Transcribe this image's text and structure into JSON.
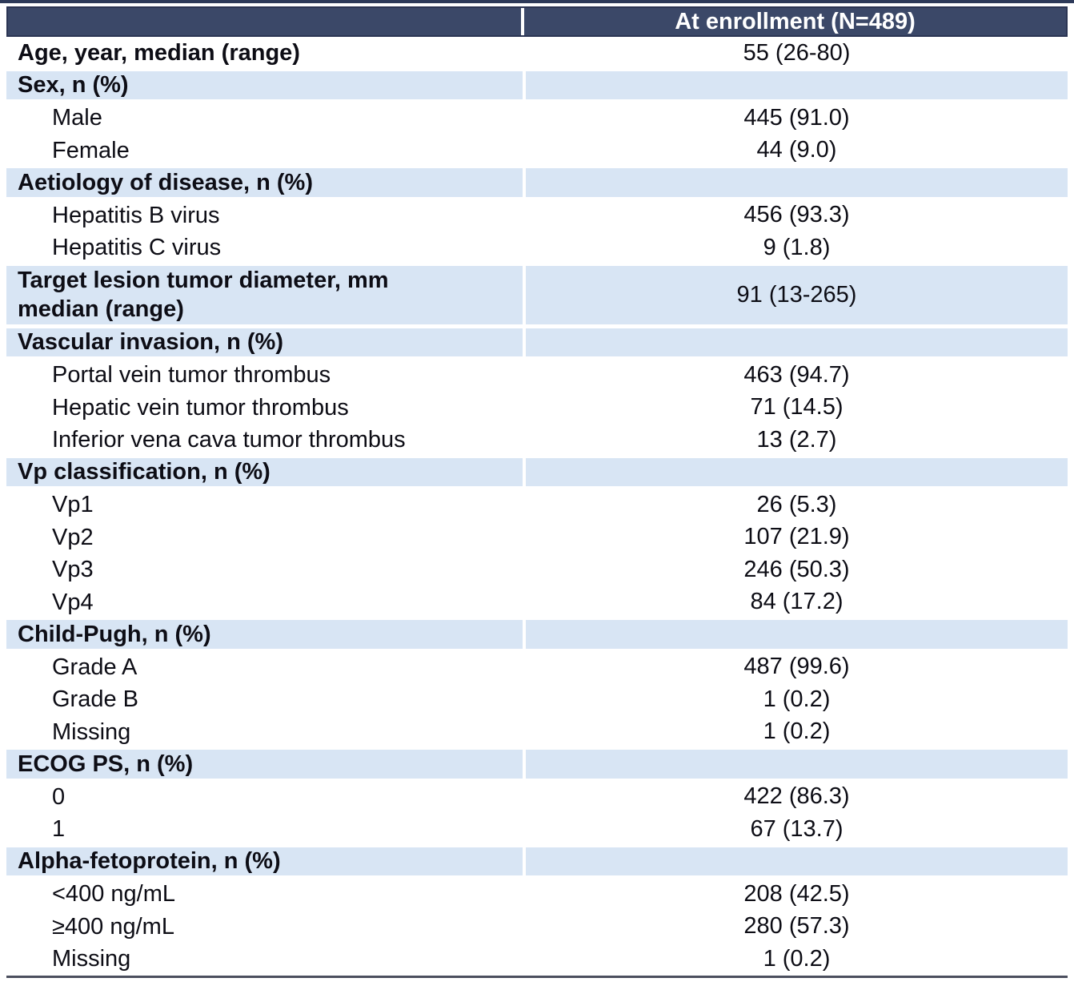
{
  "table": {
    "title_semantic": "Baseline characteristics at enrollment",
    "colors": {
      "header_bg": "#3b4868",
      "header_text": "#ffffff",
      "section_row_bg": "#d8e5f4",
      "data_row_bg": "#ffffff",
      "body_text": "#0d0d15",
      "top_rule": "#2d3a59",
      "bottom_rule": "#4b4f5e"
    },
    "header": {
      "label_col": "",
      "value_col": "At enrollment (N=489)"
    },
    "rows": [
      {
        "style": "toprow",
        "label": "Age, year, median (range)",
        "value": "55 (26-80)"
      },
      {
        "style": "section",
        "label": "Sex, n (%)",
        "value": ""
      },
      {
        "style": "item",
        "label": "Male",
        "value": "445 (91.0)"
      },
      {
        "style": "item",
        "label": "Female",
        "value": "44 (9.0)"
      },
      {
        "style": "section",
        "label": "Aetiology of disease, n (%)",
        "value": ""
      },
      {
        "style": "item",
        "label": "Hepatitis B virus",
        "value": "456 (93.3)"
      },
      {
        "style": "item",
        "label": "Hepatitis C virus",
        "value": "9 (1.8)"
      },
      {
        "style": "section tall",
        "label": "Target lesion tumor diameter, mm\nmedian (range)",
        "value": "91 (13-265)"
      },
      {
        "style": "section",
        "label": "Vascular invasion, n (%)",
        "value": ""
      },
      {
        "style": "item",
        "label": "Portal vein tumor thrombus",
        "value": "463 (94.7)"
      },
      {
        "style": "item",
        "label": "Hepatic vein tumor thrombus",
        "value": "71 (14.5)"
      },
      {
        "style": "item",
        "label": "Inferior vena cava tumor thrombus",
        "value": "13 (2.7)"
      },
      {
        "style": "section",
        "label": "Vp classification, n (%)",
        "value": ""
      },
      {
        "style": "item",
        "label": "Vp1",
        "value": "26 (5.3)"
      },
      {
        "style": "item",
        "label": "Vp2",
        "value": "107 (21.9)"
      },
      {
        "style": "item",
        "label": "Vp3",
        "value": "246 (50.3)"
      },
      {
        "style": "item",
        "label": "Vp4",
        "value": "84 (17.2)"
      },
      {
        "style": "section",
        "label": "Child-Pugh, n (%)",
        "value": ""
      },
      {
        "style": "item",
        "label": "Grade A",
        "value": "487 (99.6)"
      },
      {
        "style": "item",
        "label": "Grade B",
        "value": "1 (0.2)"
      },
      {
        "style": "item",
        "label": "Missing",
        "value": "1 (0.2)"
      },
      {
        "style": "section",
        "label": "ECOG PS, n (%)",
        "value": ""
      },
      {
        "style": "item",
        "label": "0",
        "value": "422 (86.3)"
      },
      {
        "style": "item",
        "label": "1",
        "value": "67 (13.7)"
      },
      {
        "style": "section",
        "label": "Alpha-fetoprotein, n (%)",
        "value": ""
      },
      {
        "style": "item",
        "label": "<400 ng/mL",
        "value": "208 (42.5)"
      },
      {
        "style": "item",
        "label": "≥400 ng/mL",
        "value": "280 (57.3)"
      },
      {
        "style": "item",
        "label": "Missing",
        "value": "1 (0.2)"
      }
    ]
  }
}
